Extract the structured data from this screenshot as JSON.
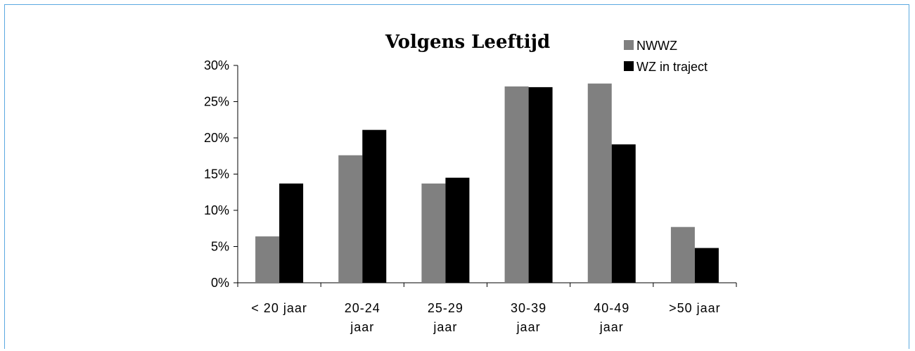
{
  "chart_data": {
    "type": "bar",
    "title": "Volgens Leeftijd",
    "categories": [
      [
        "< 20 jaar"
      ],
      [
        "20-24",
        "jaar"
      ],
      [
        "25-29",
        "jaar"
      ],
      [
        "30-39",
        "jaar"
      ],
      [
        "40-49",
        "jaar"
      ],
      [
        ">50 jaar"
      ]
    ],
    "series": [
      {
        "name": "NWWZ",
        "color": "#808080",
        "values": [
          6.4,
          17.6,
          13.7,
          27.1,
          27.5,
          7.7
        ]
      },
      {
        "name": "WZ in traject",
        "color": "#000000",
        "values": [
          13.7,
          21.1,
          14.5,
          27.0,
          19.1,
          4.8
        ]
      }
    ],
    "yticks": [
      "0%",
      "5%",
      "10%",
      "15%",
      "20%",
      "25%",
      "30%"
    ],
    "ylim": [
      0,
      30
    ],
    "grid": false,
    "legend_position": "top-right"
  }
}
